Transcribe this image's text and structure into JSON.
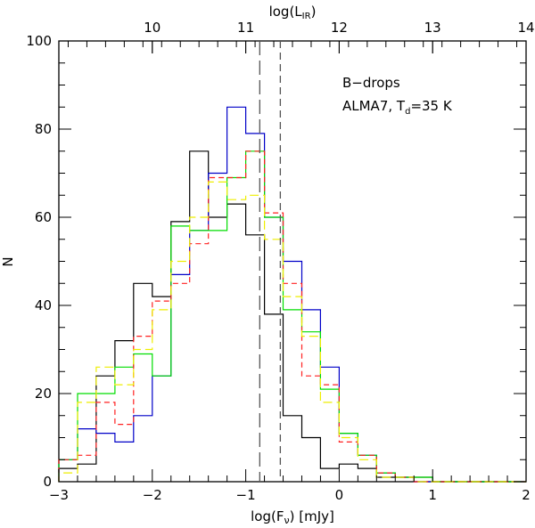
{
  "chart_data": {
    "type": "histogram",
    "xlabel": "log(F",
    "xlabel_sub": "ν",
    "xlabel_suffix": ") [mJy]",
    "ylabel": "N",
    "top_axis_label": "log(L",
    "top_axis_label_sub": "IR",
    "top_axis_label_suffix": ")",
    "xlim": [
      -3,
      2
    ],
    "ylim": [
      0,
      100
    ],
    "x_ticks": [
      -3,
      -2,
      -1,
      0,
      1,
      2
    ],
    "x_tick_labels": [
      "−3",
      "−2",
      "−1",
      "0",
      "1",
      "2"
    ],
    "y_ticks": [
      0,
      20,
      40,
      60,
      80,
      100
    ],
    "y_tick_labels": [
      "0",
      "20",
      "40",
      "60",
      "80",
      "100"
    ],
    "top_ticks": [
      10,
      11,
      12,
      13,
      14
    ],
    "top_tick_labels": [
      "10",
      "11",
      "12",
      "13",
      "14"
    ],
    "top_axis_map": {
      "logF_at_logL10": -2.0,
      "logF_per_dex": 1.0
    },
    "annotation_line1": "B−drops",
    "annotation_line2_prefix": "ALMA7, T",
    "annotation_line2_sub": "d",
    "annotation_line2_suffix": "=35 K",
    "vlines": [
      -0.85,
      -0.63
    ],
    "bin_edges": [
      -3.0,
      -2.8,
      -2.6,
      -2.4,
      -2.2,
      -2.0,
      -1.8,
      -1.6,
      -1.4,
      -1.2,
      -1.0,
      -0.8,
      -0.6,
      -0.4,
      -0.2,
      0.0,
      0.2,
      0.4,
      0.6,
      0.8,
      1.0,
      1.2,
      1.4,
      1.6,
      1.8,
      2.0
    ],
    "series": [
      {
        "name": "black",
        "color": "#000000",
        "dash": "",
        "values": [
          3,
          4,
          24,
          32,
          45,
          42,
          59,
          75,
          60,
          63,
          56,
          38,
          15,
          10,
          3,
          4,
          3,
          1,
          1,
          1,
          0,
          0,
          0,
          0,
          0
        ]
      },
      {
        "name": "blue",
        "color": "#0000c8",
        "dash": "",
        "values": [
          5,
          12,
          11,
          9,
          15,
          24,
          47,
          57,
          70,
          85,
          79,
          60,
          50,
          39,
          26,
          11,
          6,
          2,
          1,
          0,
          0,
          0,
          0,
          0,
          0
        ]
      },
      {
        "name": "green",
        "color": "#00dd00",
        "dash": "",
        "values": [
          5,
          20,
          20,
          26,
          29,
          24,
          58,
          57,
          57,
          69,
          75,
          60,
          39,
          34,
          21,
          11,
          6,
          2,
          1,
          1,
          0,
          0,
          0,
          0,
          0
        ]
      },
      {
        "name": "red",
        "color": "#ff2020",
        "dash": "6,4",
        "values": [
          5,
          6,
          18,
          13,
          33,
          41,
          45,
          54,
          69,
          69,
          75,
          61,
          45,
          24,
          22,
          9,
          6,
          2,
          1,
          0,
          0,
          0,
          0,
          0,
          0
        ]
      },
      {
        "name": "yellow",
        "color": "#eeee00",
        "dash": "10,5",
        "values": [
          2,
          18,
          26,
          22,
          30,
          39,
          50,
          60,
          68,
          64,
          65,
          55,
          42,
          33,
          18,
          10,
          5,
          1,
          1,
          0,
          0,
          0,
          0,
          0,
          0
        ]
      }
    ]
  }
}
